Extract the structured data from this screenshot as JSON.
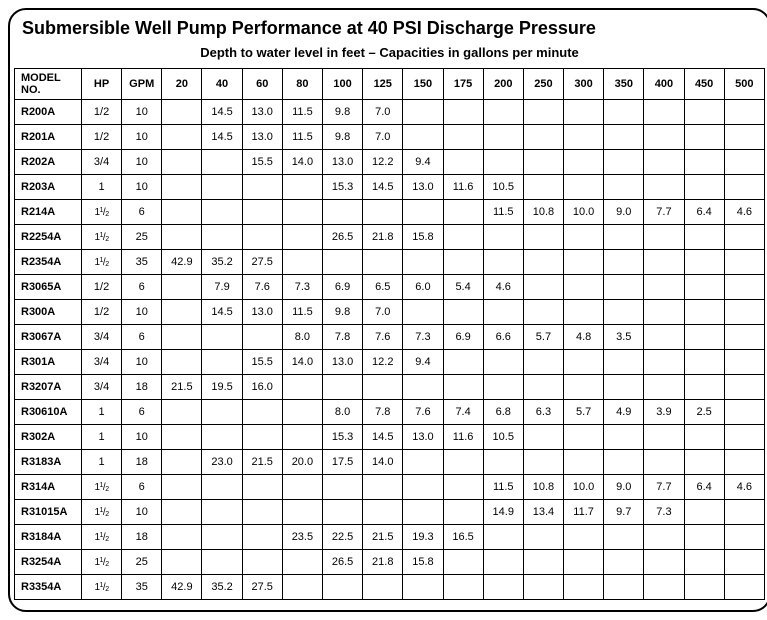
{
  "title": "Submersible Well Pump Performance at 40 PSI Discharge Pressure",
  "subtitle": "Depth to water level in feet – Capacities in gallons per minute",
  "columns": [
    "MODEL NO.",
    "HP",
    "GPM",
    "20",
    "40",
    "60",
    "80",
    "100",
    "125",
    "150",
    "175",
    "200",
    "250",
    "300",
    "350",
    "400",
    "450",
    "500"
  ],
  "rows": [
    {
      "model": "R200A",
      "hp": "1/2",
      "gpm": "10",
      "v": [
        "",
        "14.5",
        "13.0",
        "11.5",
        "9.8",
        "7.0",
        "",
        "",
        "",
        "",
        "",
        "",
        "",
        "",
        ""
      ]
    },
    {
      "model": "R201A",
      "hp": "1/2",
      "gpm": "10",
      "v": [
        "",
        "14.5",
        "13.0",
        "11.5",
        "9.8",
        "7.0",
        "",
        "",
        "",
        "",
        "",
        "",
        "",
        "",
        ""
      ]
    },
    {
      "model": "R202A",
      "hp": "3/4",
      "gpm": "10",
      "v": [
        "",
        "",
        "15.5",
        "14.0",
        "13.0",
        "12.2",
        "9.4",
        "",
        "",
        "",
        "",
        "",
        "",
        "",
        ""
      ]
    },
    {
      "model": "R203A",
      "hp": "1",
      "gpm": "10",
      "v": [
        "",
        "",
        "",
        "",
        "15.3",
        "14.5",
        "13.0",
        "11.6",
        "10.5",
        "",
        "",
        "",
        "",
        "",
        ""
      ]
    },
    {
      "model": "R214A",
      "hp": "1½",
      "gpm": "6",
      "v": [
        "",
        "",
        "",
        "",
        "",
        "",
        "",
        "",
        "11.5",
        "10.8",
        "10.0",
        "9.0",
        "7.7",
        "6.4",
        "4.6"
      ]
    },
    {
      "model": "R2254A",
      "hp": "1½",
      "gpm": "25",
      "v": [
        "",
        "",
        "",
        "",
        "26.5",
        "21.8",
        "15.8",
        "",
        "",
        "",
        "",
        "",
        "",
        "",
        ""
      ]
    },
    {
      "model": "R2354A",
      "hp": "1½",
      "gpm": "35",
      "v": [
        "42.9",
        "35.2",
        "27.5",
        "",
        "",
        "",
        "",
        "",
        "",
        "",
        "",
        "",
        "",
        "",
        ""
      ]
    },
    {
      "model": "R3065A",
      "hp": "1/2",
      "gpm": "6",
      "v": [
        "",
        "7.9",
        "7.6",
        "7.3",
        "6.9",
        "6.5",
        "6.0",
        "5.4",
        "4.6",
        "",
        "",
        "",
        "",
        "",
        ""
      ]
    },
    {
      "model": "R300A",
      "hp": "1/2",
      "gpm": "10",
      "v": [
        "",
        "14.5",
        "13.0",
        "11.5",
        "9.8",
        "7.0",
        "",
        "",
        "",
        "",
        "",
        "",
        "",
        "",
        ""
      ]
    },
    {
      "model": "R3067A",
      "hp": "3/4",
      "gpm": "6",
      "v": [
        "",
        "",
        "",
        "8.0",
        "7.8",
        "7.6",
        "7.3",
        "6.9",
        "6.6",
        "5.7",
        "4.8",
        "3.5",
        "",
        "",
        ""
      ]
    },
    {
      "model": "R301A",
      "hp": "3/4",
      "gpm": "10",
      "v": [
        "",
        "",
        "15.5",
        "14.0",
        "13.0",
        "12.2",
        "9.4",
        "",
        "",
        "",
        "",
        "",
        "",
        "",
        ""
      ]
    },
    {
      "model": "R3207A",
      "hp": "3/4",
      "gpm": "18",
      "v": [
        "21.5",
        "19.5",
        "16.0",
        "",
        "",
        "",
        "",
        "",
        "",
        "",
        "",
        "",
        "",
        "",
        ""
      ]
    },
    {
      "model": "R30610A",
      "hp": "1",
      "gpm": "6",
      "v": [
        "",
        "",
        "",
        "",
        "8.0",
        "7.8",
        "7.6",
        "7.4",
        "6.8",
        "6.3",
        "5.7",
        "4.9",
        "3.9",
        "2.5",
        ""
      ]
    },
    {
      "model": "R302A",
      "hp": "1",
      "gpm": "10",
      "v": [
        "",
        "",
        "",
        "",
        "15.3",
        "14.5",
        "13.0",
        "11.6",
        "10.5",
        "",
        "",
        "",
        "",
        "",
        ""
      ]
    },
    {
      "model": "R3183A",
      "hp": "1",
      "gpm": "18",
      "v": [
        "",
        "23.0",
        "21.5",
        "20.0",
        "17.5",
        "14.0",
        "",
        "",
        "",
        "",
        "",
        "",
        "",
        "",
        ""
      ]
    },
    {
      "model": "R314A",
      "hp": "1½",
      "gpm": "6",
      "v": [
        "",
        "",
        "",
        "",
        "",
        "",
        "",
        "",
        "11.5",
        "10.8",
        "10.0",
        "9.0",
        "7.7",
        "6.4",
        "4.6"
      ]
    },
    {
      "model": "R31015A",
      "hp": "1½",
      "gpm": "10",
      "v": [
        "",
        "",
        "",
        "",
        "",
        "",
        "",
        "",
        "14.9",
        "13.4",
        "11.7",
        "9.7",
        "7.3",
        "",
        ""
      ]
    },
    {
      "model": "R3184A",
      "hp": "1½",
      "gpm": "18",
      "v": [
        "",
        "",
        "",
        "23.5",
        "22.5",
        "21.5",
        "19.3",
        "16.5",
        "",
        "",
        "",
        "",
        "",
        "",
        ""
      ]
    },
    {
      "model": "R3254A",
      "hp": "1½",
      "gpm": "25",
      "v": [
        "",
        "",
        "",
        "",
        "26.5",
        "21.8",
        "15.8",
        "",
        "",
        "",
        "",
        "",
        "",
        "",
        ""
      ]
    },
    {
      "model": "R3354A",
      "hp": "1½",
      "gpm": "35",
      "v": [
        "42.9",
        "35.2",
        "27.5",
        "",
        "",
        "",
        "",
        "",
        "",
        "",
        "",
        "",
        "",
        "",
        ""
      ]
    }
  ]
}
